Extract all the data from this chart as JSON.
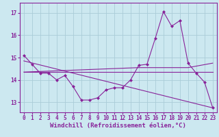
{
  "background_color": "#cce8f0",
  "grid_color": "#aaccd8",
  "line_color": "#882299",
  "marker_color": "#882299",
  "xlabel": "Windchill (Refroidissement éolien,°C)",
  "ylim": [
    12.55,
    17.45
  ],
  "xlim": [
    -0.5,
    23.5
  ],
  "yticks": [
    13,
    14,
    15,
    16,
    17
  ],
  "xticks": [
    0,
    1,
    2,
    3,
    4,
    5,
    6,
    7,
    8,
    9,
    10,
    11,
    12,
    13,
    14,
    15,
    16,
    17,
    18,
    19,
    20,
    21,
    22,
    23
  ],
  "series1_x": [
    0,
    1,
    2,
    3,
    4,
    5,
    6,
    7,
    8,
    9,
    10,
    11,
    12,
    13,
    14,
    15,
    16,
    17,
    18,
    19,
    20,
    21,
    22,
    23
  ],
  "series1_y": [
    15.1,
    14.7,
    14.3,
    14.3,
    14.0,
    14.2,
    13.7,
    13.1,
    13.1,
    13.2,
    13.55,
    13.65,
    13.65,
    14.0,
    14.65,
    14.7,
    15.85,
    17.05,
    16.4,
    16.65,
    14.75,
    14.3,
    13.9,
    12.75
  ],
  "series2_x": [
    0,
    23
  ],
  "series2_y": [
    14.35,
    14.35
  ],
  "series3_x": [
    0,
    14,
    20,
    23
  ],
  "series3_y": [
    14.35,
    14.55,
    14.55,
    14.75
  ],
  "series4_x": [
    0,
    23
  ],
  "series4_y": [
    14.85,
    12.75
  ],
  "font_color": "#882299",
  "tick_fontsize": 5.5,
  "label_fontsize": 6.5
}
